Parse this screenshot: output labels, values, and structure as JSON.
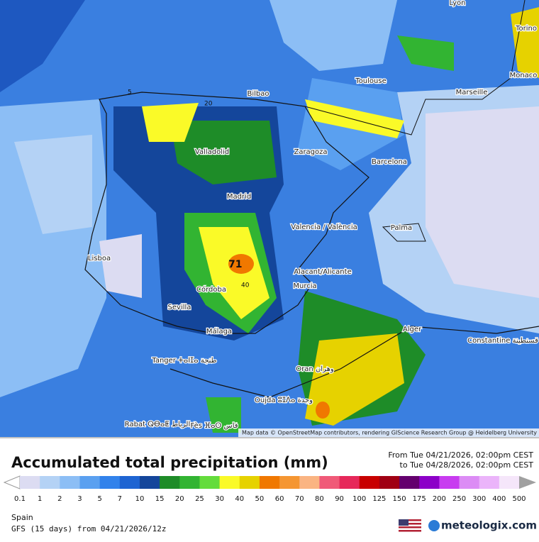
{
  "map": {
    "cities": [
      "Lyon",
      "Torino",
      "Monaco",
      "Toulouse",
      "Marseille",
      "Bilbao",
      "Zaragoza",
      "Barcelona",
      "Valladolid",
      "Madrid",
      "Valencia / València",
      "Palma",
      "Lisboa",
      "Córdoba",
      "Alacant/Alicante",
      "Murcia",
      "Sevilla",
      "Málaga",
      "Alger",
      "Constantine قسنطينة",
      "Tanger ⵜⴰⵏⵊⴰ طنجة",
      "Oran وهران",
      "Oujda ⵓⵊⴷⴰ وجدة",
      "Rabat ⵕⴱⴰⵟ الرباط",
      "Fès ⴼⴰⵙ فاس"
    ],
    "contour_labels": [
      5,
      20,
      40,
      71
    ],
    "attribution": "Map data © OpenStreetMap contributors, rendering GIScience Research Group @ Heidelberg University"
  },
  "header": {
    "title": "Accumulated total precipitation (mm)",
    "from": "From Tue 04/21/2026, 02:00pm CEST",
    "to": "to Tue 04/28/2026, 02:00pm CEST"
  },
  "legend": {
    "labels": [
      0.1,
      1,
      2,
      3,
      5,
      7,
      10,
      15,
      20,
      25,
      30,
      40,
      50,
      60,
      70,
      80,
      90,
      100,
      125,
      150,
      175,
      200,
      250,
      300,
      400,
      500
    ],
    "colors": [
      "#dcdcf2",
      "#b4d2f5",
      "#8cbef5",
      "#5aa0f0",
      "#3282eb",
      "#1e64d2",
      "#14469b",
      "#1e8c28",
      "#32b432",
      "#64dc3c",
      "#fafa28",
      "#e6d200",
      "#f07800",
      "#f59632",
      "#fab482",
      "#f05a78",
      "#e6285a",
      "#c80000",
      "#a00014",
      "#64006e",
      "#8c00c8",
      "#c83cf0",
      "#dc8cf5",
      "#ebb4fa",
      "#f5e6fa"
    ]
  },
  "footer": {
    "region": "Spain",
    "model": "GFS (15 days) from 04/21/2026/12z",
    "brand": "meteologix.com"
  }
}
